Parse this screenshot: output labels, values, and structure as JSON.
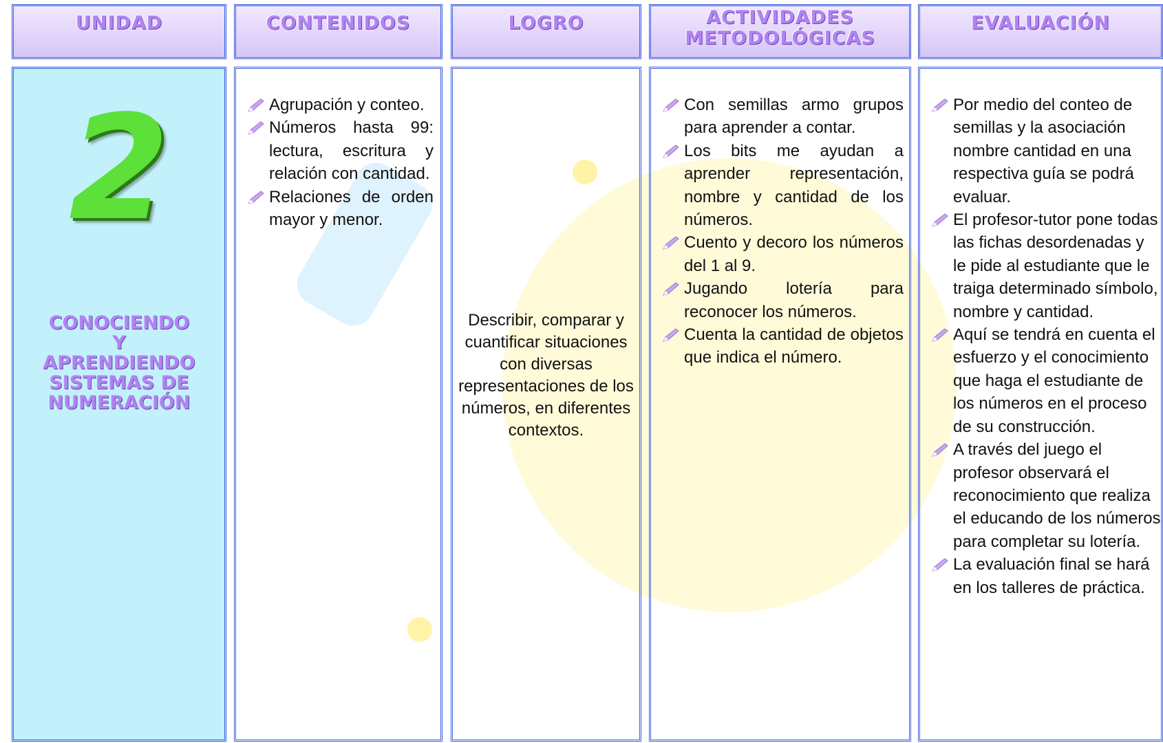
{
  "header": {
    "columns": [
      "UNIDAD",
      "CONTENIDOS",
      "LOGRO",
      "ACTIVIDADES METODOLÓGICAS",
      "EVALUACIÓN"
    ]
  },
  "unidad": {
    "number": "2",
    "title_lines": [
      "CONOCIENDO",
      "Y",
      "APRENDIENDO",
      "SISTEMAS DE",
      "NUMERACIÓN"
    ]
  },
  "contenidos": [
    "Agrupación y conteo.",
    "Números hasta 99: lectura, escritura y relación con cantidad.",
    "Relaciones de orden mayor y menor."
  ],
  "logro": "Describir, comparar y cuantificar situaciones con diversas representaciones de los números, en diferentes contextos.",
  "actividades": [
    "Con semillas armo grupos para aprender a contar.",
    "Los bits me ayudan a aprender representación, nombre y cantidad de los números.",
    "Cuento y decoro los números del 1 al 9.",
    "Jugando lotería para reconocer los números.",
    "Cuenta la cantidad de objetos que indica el número."
  ],
  "evaluacion": [
    "Por medio del conteo de semillas y la asociación nombre cantidad en una respectiva guía se podrá evaluar.",
    "El profesor-tutor pone todas las fichas desordenadas y le pide al estudiante que le traiga determinado símbolo, nombre y cantidad.",
    "Aquí se tendrá en cuenta el esfuerzo y el conocimiento que haga el estudiante de los números en el proceso de su construcción.",
    "A través del juego el profesor observará el reconocimiento que realiza el educando de los números para completar su lotería.",
    "La evaluación final se hará en los talleres de práctica."
  ]
}
